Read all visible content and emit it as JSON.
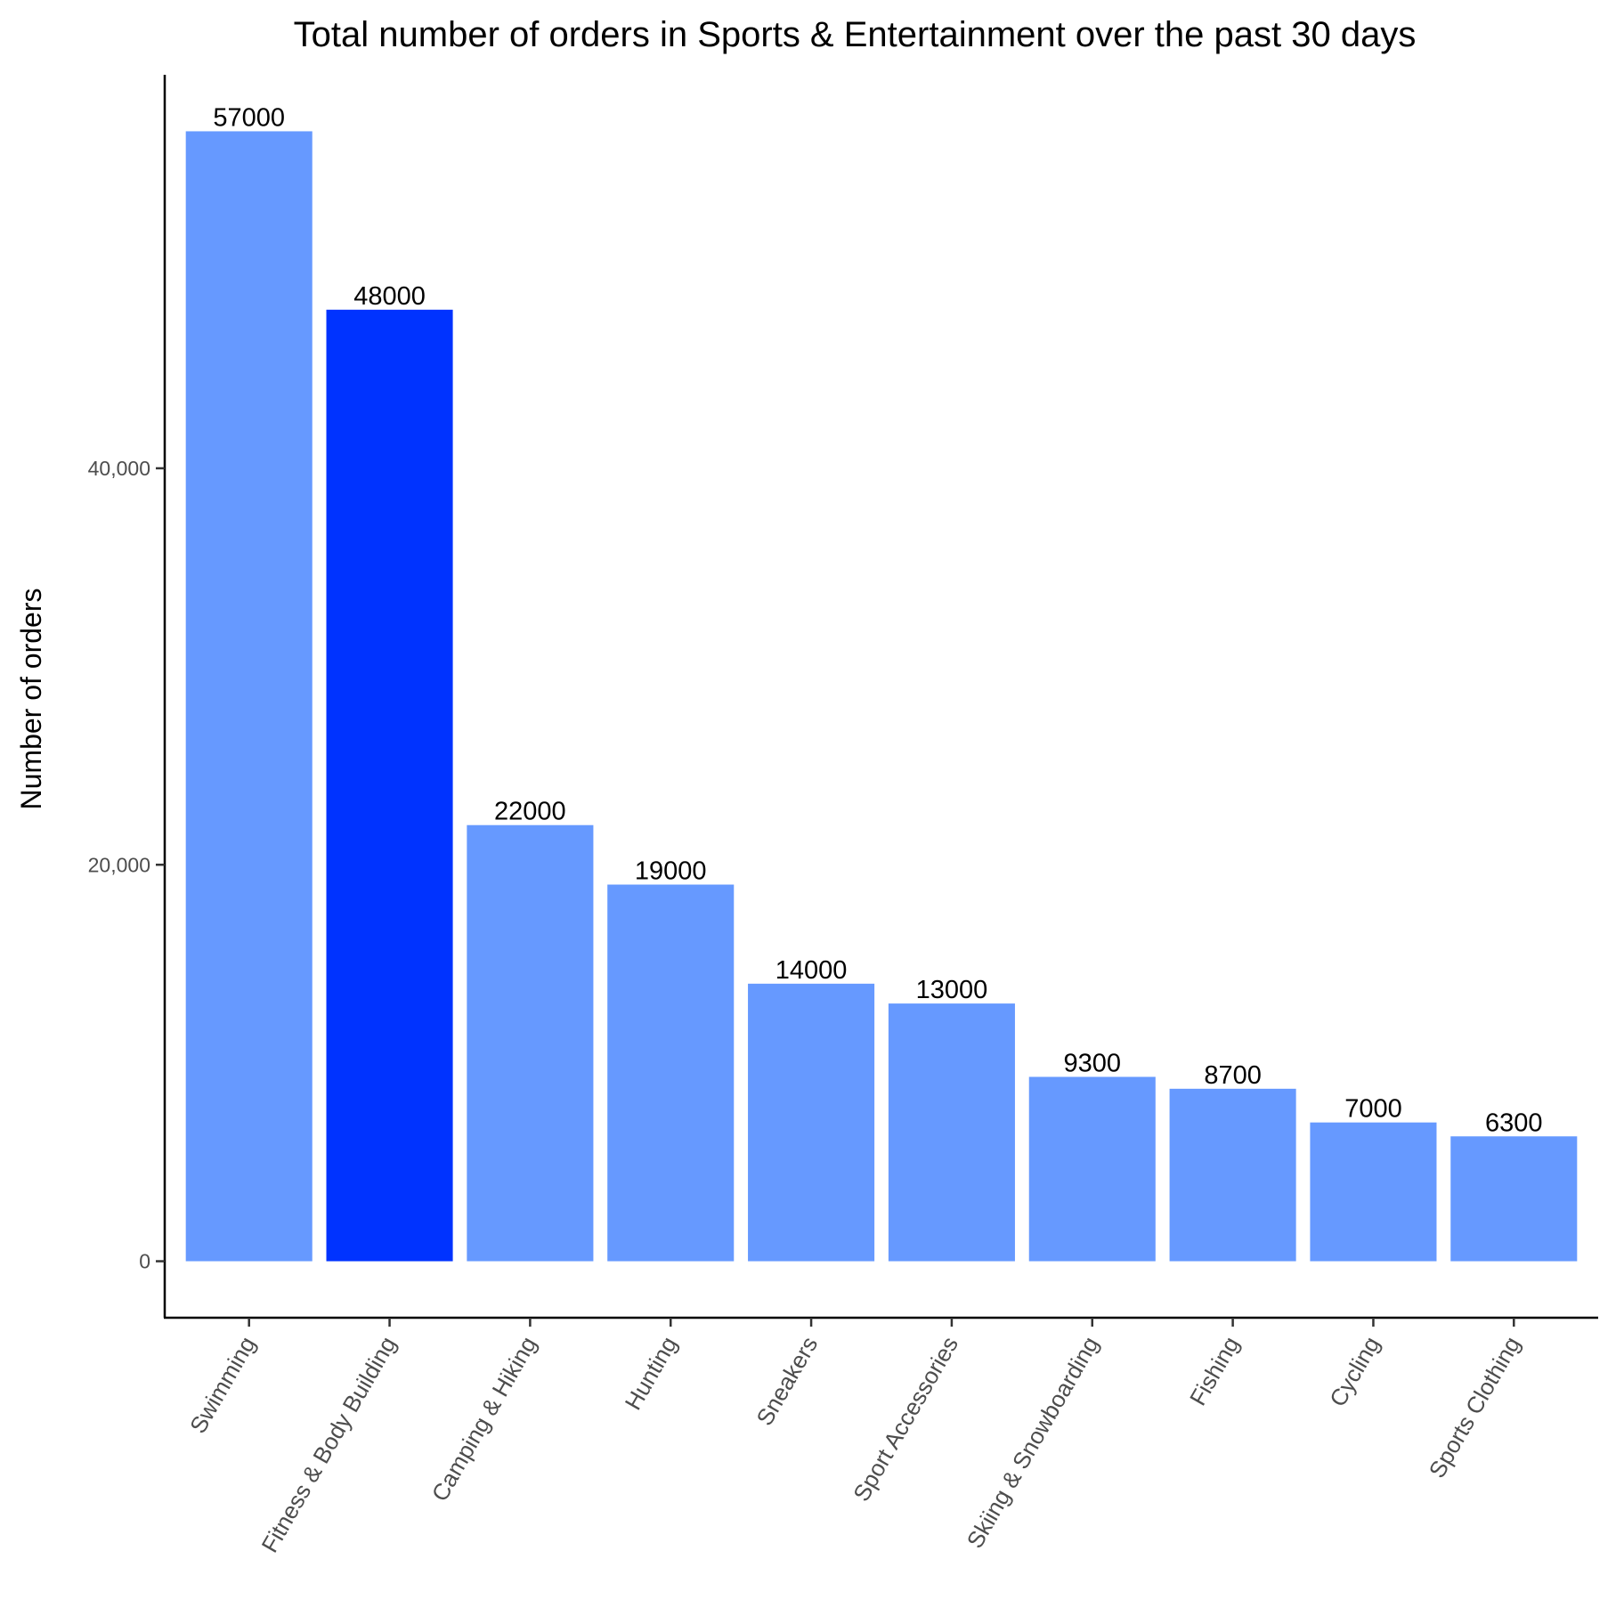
{
  "chart_data": {
    "type": "bar",
    "title": "Total number of orders in Sports & Entertainment over the past 30 days",
    "xlabel": "",
    "ylabel": "Number of orders",
    "categories": [
      "Swimming",
      "Fitness & Body Building",
      "Camping & Hiking",
      "Hunting",
      "Sneakers",
      "Sport Accessories",
      "Skiing & Snowboarding",
      "Fishing",
      "Cycling",
      "Sports Clothing"
    ],
    "values": [
      57000,
      48000,
      22000,
      19000,
      14000,
      13000,
      9300,
      8700,
      7000,
      6300
    ],
    "data_labels": [
      "57000",
      "48000",
      "22000",
      "19000",
      "14000",
      "13000",
      "9300",
      "8700",
      "7000",
      "6300"
    ],
    "yticks": [
      0,
      20000,
      40000
    ],
    "ytick_labels": [
      "0",
      "20,000",
      "40,000"
    ],
    "ylim": [
      -2850,
      59850
    ],
    "grid": false,
    "legend": "none",
    "bar_color": "#6699FF",
    "highlight_color": "#0033FF",
    "highlight_index": 1
  }
}
